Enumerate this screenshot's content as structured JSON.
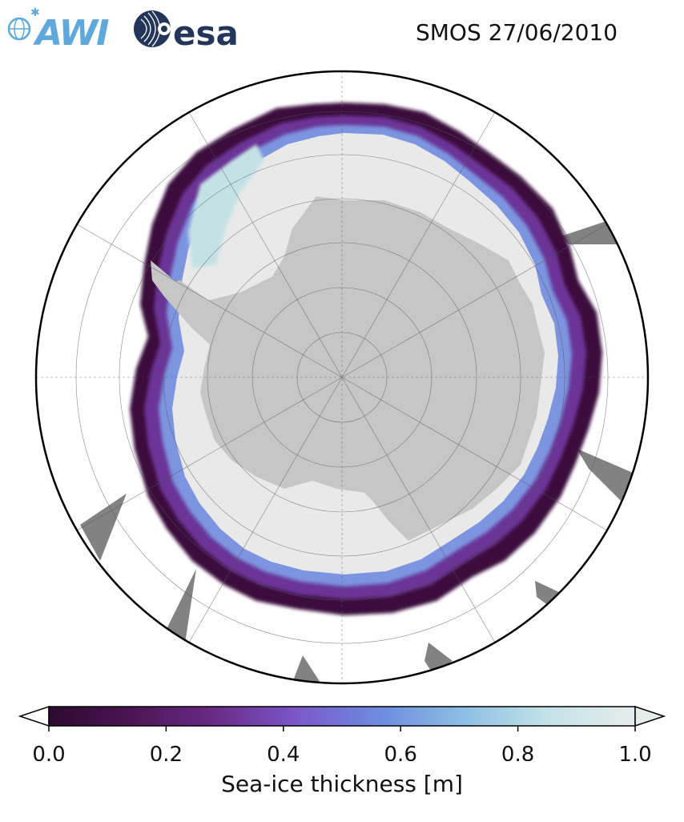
{
  "header": {
    "awi_logo_text": "AWI",
    "esa_logo_text": "esa",
    "title": "SMOS 27/06/2010"
  },
  "colors": {
    "land": "#c6c6c6",
    "missing_data": "#828282",
    "ocean": "#ffffff",
    "thick_ice": "#e9e9e9",
    "awi_blue": "#5fa8dc",
    "esa_navy": "#233558"
  },
  "colorbar": {
    "label": "Sea-ice thickness [m]",
    "ticks": [
      "0.0",
      "0.2",
      "0.4",
      "0.6",
      "0.8",
      "1.0"
    ],
    "range": [
      0.0,
      1.0
    ],
    "extend": "both",
    "colormap": [
      "#2d0a30",
      "#4b1553",
      "#6a2a86",
      "#7b57c8",
      "#6d8ee0",
      "#8ebfe4",
      "#c3e3e8",
      "#e6ecec"
    ]
  },
  "map": {
    "projection": "south polar stereographic",
    "region": "Antarctica / Southern Ocean"
  }
}
